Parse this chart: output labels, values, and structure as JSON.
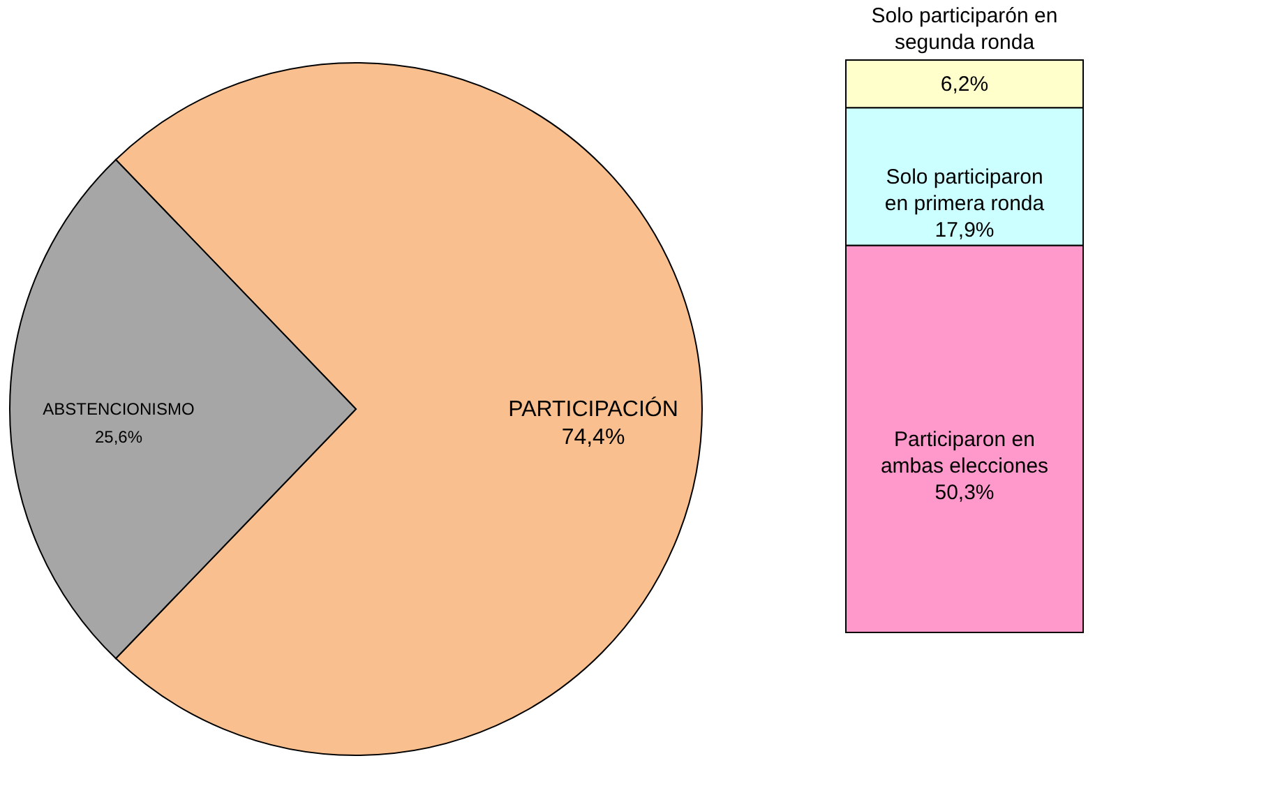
{
  "chart_data": [
    {
      "type": "pie",
      "categories": [
        "ABSTENCIONISMO",
        "PARTICIPACIÓN"
      ],
      "values": [
        25.6,
        74.4
      ],
      "colors": [
        "#a6a6a6",
        "#f9bf8f"
      ],
      "value_labels": [
        "25,6%",
        "74,4%"
      ]
    },
    {
      "type": "bar",
      "stacked": true,
      "categories": [
        null
      ],
      "series": [
        {
          "name": "Participaron en ambas elecciones",
          "color": "#ff99cc",
          "values": [
            50.3
          ],
          "value_labels": [
            "50,3%"
          ]
        },
        {
          "name": "Solo participaron en primera ronda",
          "color": "#ccffff",
          "values": [
            17.9
          ],
          "value_labels": [
            "17,9%"
          ]
        },
        {
          "name": "Solo participarón en segunda ronda",
          "color": "#ffffcc",
          "values": [
            6.2
          ],
          "value_labels": [
            "6,2%"
          ]
        }
      ]
    }
  ]
}
